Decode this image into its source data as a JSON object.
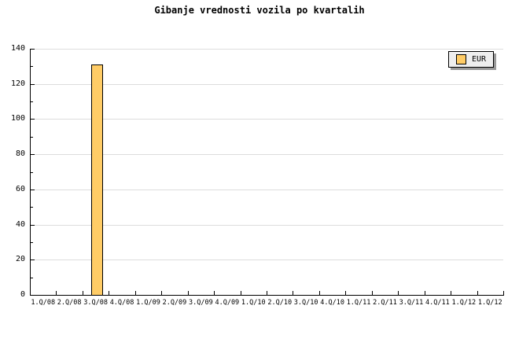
{
  "chart_data": {
    "type": "bar",
    "title": "Gibanje vrednosti vozila po kvartalih",
    "xlabel": "",
    "ylabel": "",
    "categories": [
      "1.Q/08",
      "2.Q/08",
      "3.Q/08",
      "4.Q/08",
      "1.Q/09",
      "2.Q/09",
      "3.Q/09",
      "4.Q/09",
      "1.Q/10",
      "2.Q/10",
      "3.Q/10",
      "4.Q/10",
      "1.Q/11",
      "2.Q/11",
      "3.Q/11",
      "4.Q/11",
      "1.Q/12",
      "1.Q/12"
    ],
    "series": [
      {
        "name": "EUR",
        "values": [
          null,
          null,
          131,
          null,
          null,
          null,
          null,
          null,
          null,
          null,
          null,
          null,
          null,
          null,
          null,
          null,
          null,
          null
        ]
      }
    ],
    "ylim": [
      0,
      140
    ],
    "ytick_step": 20,
    "yminor_step": 10,
    "grid": "horizontal-major",
    "legend_position": "top-right",
    "colors": {
      "bar_fill": "#FFCC66",
      "bar_border": "#000000",
      "grid_line": "#DDDDDD",
      "axis": "#000000",
      "legend_bg": "#EEEEEE",
      "legend_shadow": "#999999",
      "background": "#FFFFFF",
      "text": "#000000"
    }
  }
}
